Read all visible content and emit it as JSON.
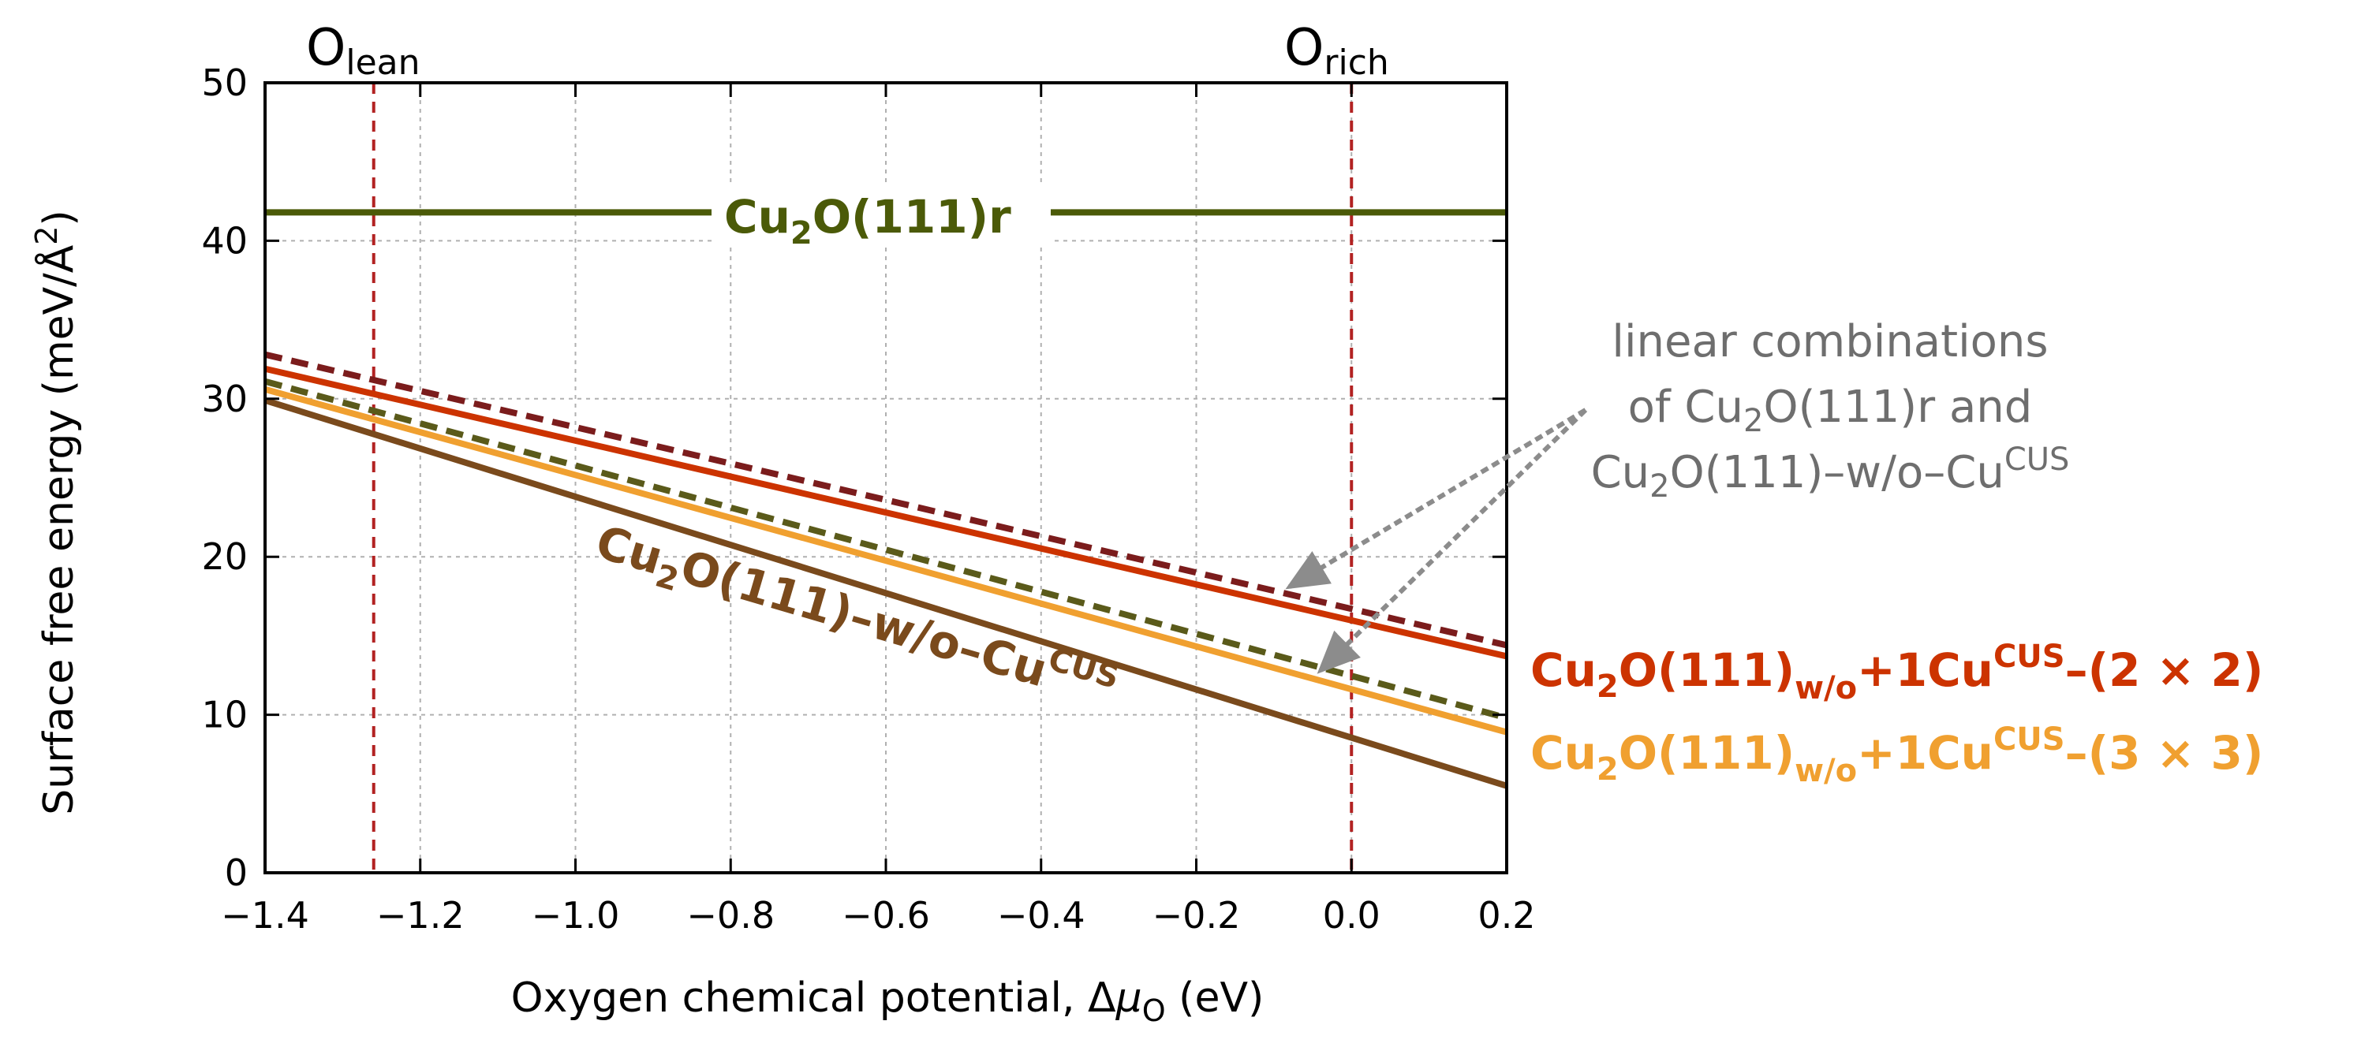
{
  "chart_data": {
    "type": "line",
    "xlabel_prefix": "Oxygen chemical potential, Δ",
    "xlabel_mu": "μ",
    "xlabel_sub": "O",
    "xlabel_suffix": " (eV)",
    "ylabel_prefix": "Surface free energy (meV/Å",
    "ylabel_sup": "2",
    "ylabel_suffix": ")",
    "xlim": [
      -1.4,
      0.2
    ],
    "ylim": [
      0,
      50
    ],
    "grid": true,
    "x_ticks": [
      -1.4,
      -1.2,
      -1.0,
      -0.8,
      -0.6,
      -0.4,
      -0.2,
      0.0,
      0.2
    ],
    "x_tick_labels": [
      "−1.4",
      "−1.2",
      "−1.0",
      "−0.8",
      "−0.6",
      "−0.4",
      "−0.2",
      "0.0",
      "0.2"
    ],
    "y_ticks": [
      0,
      10,
      20,
      30,
      40,
      50
    ],
    "y_tick_labels": [
      "0",
      "10",
      "20",
      "30",
      "40",
      "50"
    ],
    "vertical_markers": [
      {
        "x": -1.26,
        "label_main": "O",
        "label_sub": "lean",
        "color": "#b22222"
      },
      {
        "x": 0.0,
        "label_main": "O",
        "label_sub": "rich",
        "color": "#b22222"
      }
    ],
    "series": [
      {
        "name": "Cu2O(111)r",
        "x": [
          -1.4,
          0.2
        ],
        "y": [
          41.8,
          41.8
        ],
        "color": "#4b5a08",
        "dash": false
      },
      {
        "name": "linear combination (dark red)",
        "x": [
          -1.4,
          0.2
        ],
        "y": [
          32.8,
          14.4
        ],
        "color": "#7b1c1c",
        "dash": true
      },
      {
        "name": "Cu2O(111)w/o+1Cu-CUS-(2 × 2)",
        "x": [
          -1.4,
          0.2
        ],
        "y": [
          31.9,
          13.7
        ],
        "color": "#cc3300",
        "dash": false
      },
      {
        "name": "linear combination (olive)",
        "x": [
          -1.4,
          0.2
        ],
        "y": [
          31.1,
          9.8
        ],
        "color": "#5a5a1a",
        "dash": true
      },
      {
        "name": "Cu2O(111)w/o+1Cu-CUS-(3 × 3)",
        "x": [
          -1.4,
          0.2
        ],
        "y": [
          30.6,
          8.9
        ],
        "color": "#f0a030",
        "dash": false
      },
      {
        "name": "Cu2O(111)-w/o-Cu-CUS",
        "x": [
          -1.4,
          0.2
        ],
        "y": [
          29.9,
          5.5
        ],
        "color": "#7a4a1c",
        "dash": false
      }
    ],
    "labels": {
      "r": {
        "main": "Cu",
        "sub": "2",
        "rest": "O(111)r"
      },
      "wo": {
        "main": "Cu",
        "sub": "2",
        "mid": "O(111)–w/o–Cu",
        "sup": "CUS"
      },
      "s22": {
        "main": "Cu",
        "sub1": "2",
        "mid1": "O(111)",
        "sub2": "w/o",
        "mid2": "+1Cu",
        "sup": "CUS",
        "tail": "–(2 × 2)"
      },
      "s33": {
        "main": "Cu",
        "sub1": "2",
        "mid1": "O(111)",
        "sub2": "w/o",
        "mid2": "+1Cu",
        "sup": "CUS",
        "tail": "–(3 × 3)"
      }
    },
    "annotation": {
      "line1": "linear combinations",
      "line2_pre": "of Cu",
      "line2_sub": "2",
      "line2_post": "O(111)r and",
      "line3_pre": "Cu",
      "line3_sub": "2",
      "line3_mid": "O(111)–w/o–Cu",
      "line3_sup": "CUS",
      "arrow_targets": [
        {
          "x": -0.08,
          "y": 18.1
        },
        {
          "x": -0.04,
          "y": 12.8
        }
      ]
    }
  }
}
